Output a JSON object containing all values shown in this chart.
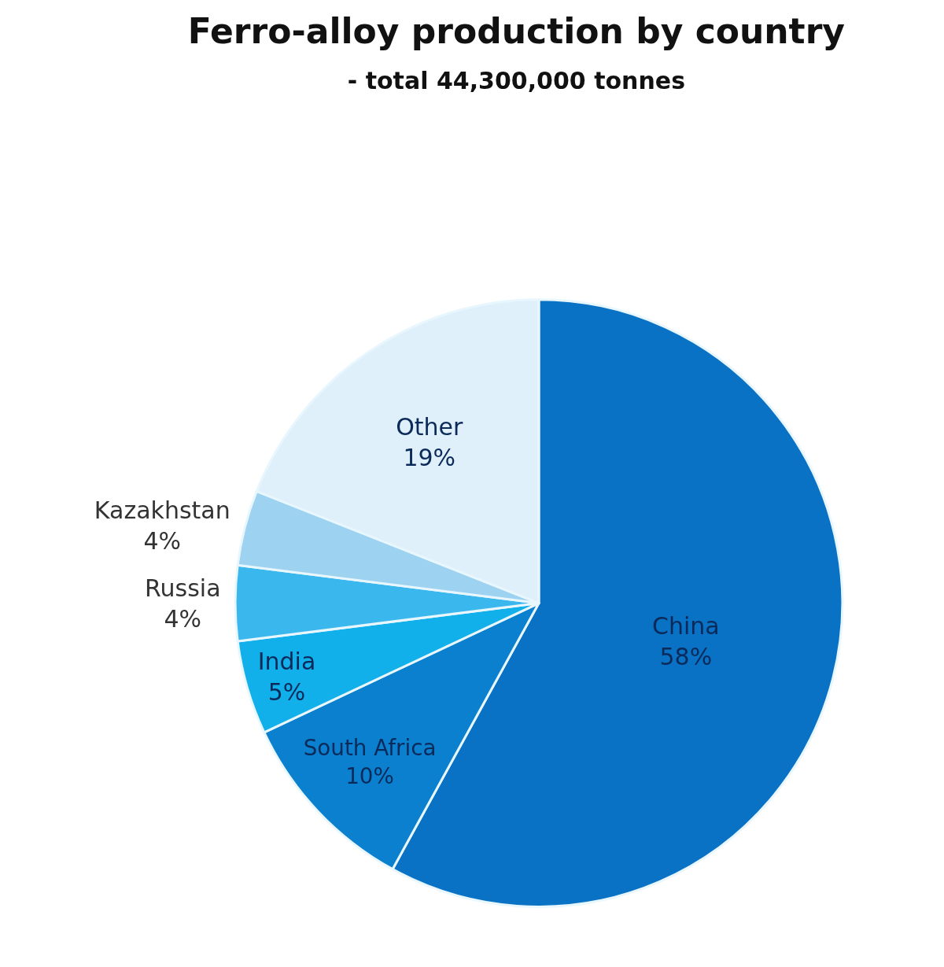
{
  "chart_data": {
    "type": "pie",
    "title": "Ferro-alloy production by country",
    "subtitle": "- total 44,300,000 tonnes",
    "categories": [
      "China",
      "South Africa",
      "India",
      "Russia",
      "Kazakhstan",
      "Other"
    ],
    "values": [
      58,
      10,
      5,
      4,
      4,
      19
    ],
    "value_labels": [
      "58%",
      "10%",
      "5%",
      "4%",
      "4%",
      "19%"
    ],
    "colors": [
      "#0a72c4",
      "#0a80cf",
      "#12b0ea",
      "#3ab8ee",
      "#9dd2f0",
      "#dff0fb"
    ],
    "legend": false
  }
}
